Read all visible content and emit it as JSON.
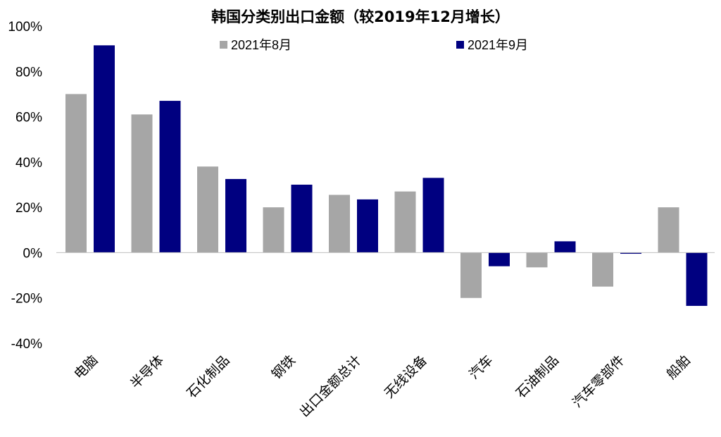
{
  "chart_data": {
    "type": "bar",
    "title": "韩国分类别出口金额（较2019年12月增长）",
    "categories": [
      "电脑",
      "半导体",
      "石化制品",
      "钢铁",
      "出口金额总计",
      "无线设备",
      "汽车",
      "石油制品",
      "汽车零部件",
      "船舶"
    ],
    "series": [
      {
        "name": "2021年8月",
        "color": "#a6a6a6",
        "values": [
          70,
          61,
          38,
          20,
          25.5,
          27,
          -20,
          -6.5,
          -15,
          20
        ]
      },
      {
        "name": "2021年9月",
        "color": "#000080",
        "values": [
          91.5,
          67,
          32.5,
          30,
          23.5,
          33,
          -6,
          5,
          -0.5,
          -23.5
        ]
      }
    ],
    "ylim": [
      -40,
      100
    ],
    "yticks": [
      -40,
      -20,
      0,
      20,
      40,
      60,
      80,
      100
    ],
    "ytick_labels": [
      "-40%",
      "-20%",
      "0%",
      "20%",
      "40%",
      "60%",
      "80%",
      "100%"
    ],
    "grid": false,
    "legend": "top-center"
  }
}
